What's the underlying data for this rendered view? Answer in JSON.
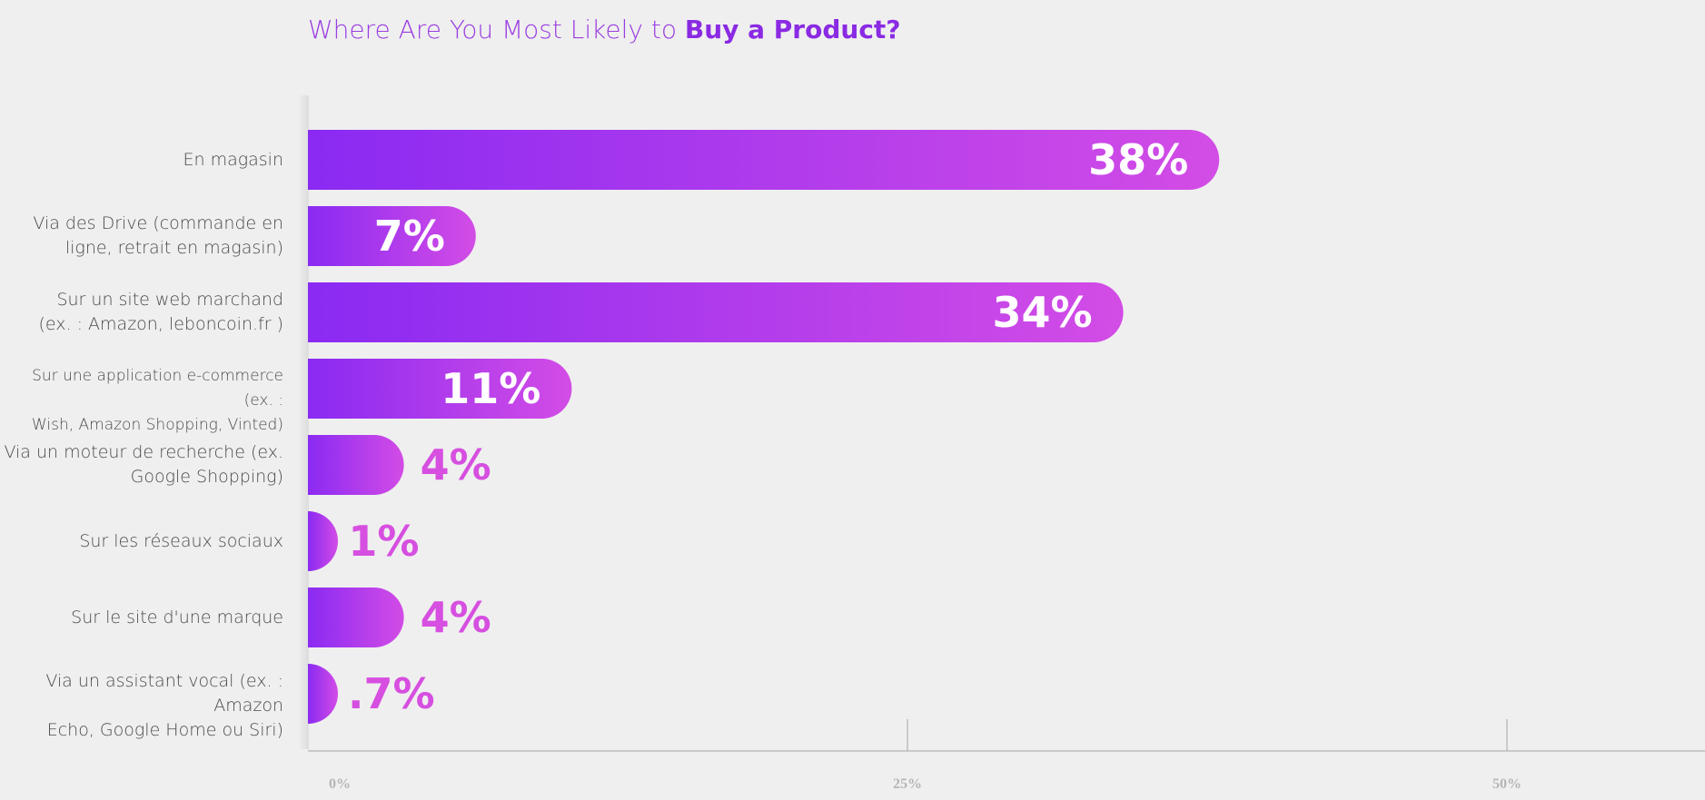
{
  "title": {
    "prefix": "Where Are You Most Likely to ",
    "emphasis": "Buy a Product?"
  },
  "colors": {
    "bar_start": "#8a2af2",
    "bar_end": "#d34ce6",
    "value_outside": "#d64fe0",
    "value_inside": "#ffffff",
    "axis": "#bdbdbd",
    "tick_label": "#b5b5b5"
  },
  "chart_data": {
    "type": "bar",
    "orientation": "horizontal",
    "title": "Where Are You Most Likely to Buy a Product?",
    "categories": [
      "En magasin",
      "Via des Drive (commande en ligne, retrait en magasin)",
      "Sur un site web marchand (ex. : Amazon, leboncoin.fr )",
      "Sur une application e-commerce (ex. : Wish, Amazon Shopping, Vinted)",
      "Via un moteur de recherche (ex. Google Shopping)",
      "Sur les réseaux sociaux",
      "Sur le site d'une marque",
      "Via un assistant vocal (ex. : Amazon Echo, Google Home ou Siri)"
    ],
    "category_lines": [
      [
        "En magasin"
      ],
      [
        "Via des Drive (commande en",
        "ligne, retrait en magasin)"
      ],
      [
        "Sur un site web marchand",
        "(ex. : Amazon, leboncoin.fr )"
      ],
      [
        "Sur une application e-commerce (ex. :",
        "Wish, Amazon Shopping, Vinted)"
      ],
      [
        "Via un moteur de recherche (ex.",
        "Google Shopping)"
      ],
      [
        "Sur les réseaux sociaux"
      ],
      [
        "Sur le site d'une marque"
      ],
      [
        "Via un assistant vocal (ex. : Amazon",
        "Echo, Google Home ou Siri)"
      ]
    ],
    "values": [
      38,
      7,
      34,
      11,
      4,
      1,
      4,
      0.7
    ],
    "value_labels": [
      "38%",
      "7%",
      "34%",
      "11%",
      "4%",
      "1%",
      "4%",
      ".7%"
    ],
    "xlim": [
      0,
      58
    ],
    "xticks": [
      0,
      25,
      50
    ],
    "xtick_labels": [
      "0%",
      "25%",
      "50%"
    ],
    "grid": false,
    "legend": "none"
  }
}
